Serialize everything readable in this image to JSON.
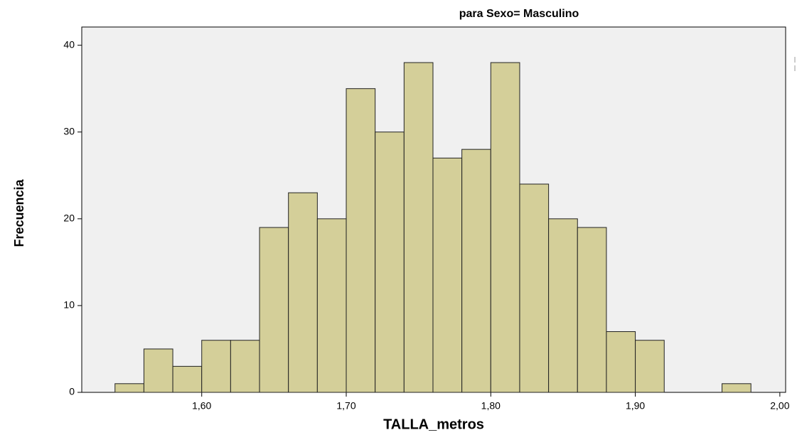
{
  "chart_data": {
    "type": "histogram",
    "title": "para Sexo= Masculino",
    "xlabel": "TALLA_metros",
    "ylabel": "Frecuencia",
    "bins": [
      1.54,
      1.56,
      1.58,
      1.6,
      1.62,
      1.64,
      1.66,
      1.68,
      1.7,
      1.72,
      1.74,
      1.76,
      1.78,
      1.8,
      1.82,
      1.84,
      1.86,
      1.88,
      1.9,
      1.92,
      1.94,
      1.96,
      1.98
    ],
    "values": [
      1,
      5,
      3,
      6,
      6,
      19,
      23,
      20,
      35,
      30,
      38,
      27,
      28,
      38,
      24,
      20,
      19,
      7,
      6,
      0,
      0,
      1
    ],
    "color": "#d4cf99",
    "xlim": [
      1.517,
      2.004
    ],
    "xticks": [
      {
        "value": 1.6,
        "label": "1,60"
      },
      {
        "value": 1.7,
        "label": "1,70"
      },
      {
        "value": 1.8,
        "label": "1,80"
      },
      {
        "value": 1.9,
        "label": "1,90"
      },
      {
        "value": 2.0,
        "label": "2,00"
      }
    ],
    "ylim": [
      0,
      42.1
    ],
    "yticks": [
      0,
      10,
      20,
      30,
      40
    ]
  }
}
